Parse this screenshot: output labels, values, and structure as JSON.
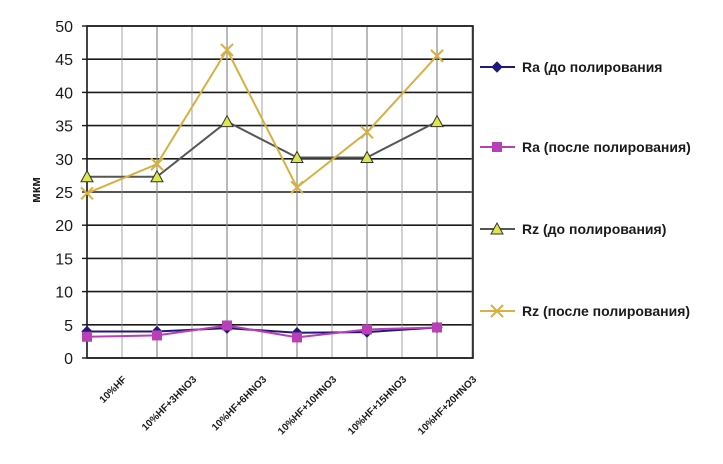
{
  "chart_data": {
    "type": "line",
    "title": "",
    "xlabel": "",
    "ylabel": "мкм",
    "ylim": [
      0,
      50
    ],
    "yticks": [
      "0",
      "5",
      "10",
      "15",
      "20",
      "25",
      "30",
      "35",
      "40",
      "45",
      "50"
    ],
    "categories": [
      "10%HF",
      "10%HF+3HNO3",
      "10%HF+6HNO3",
      "10%HF+10HNO3",
      "10%HF+15HNO3",
      "10%HF+20HNO3"
    ],
    "grid": true,
    "legend_position": "right",
    "series": [
      {
        "name": "Ra (до полирования",
        "values": [
          4.0,
          4.0,
          4.5,
          3.8,
          3.9,
          4.6
        ],
        "color": "#1f1a7a",
        "marker": "diamond"
      },
      {
        "name": "Ra (после полирования)",
        "values": [
          3.2,
          3.4,
          4.9,
          3.1,
          4.3,
          4.6
        ],
        "color": "#b83fb5",
        "marker": "square"
      },
      {
        "name": "Rz (до полирования)",
        "values": [
          27.3,
          27.3,
          35.6,
          30.2,
          30.2,
          35.6
        ],
        "color": "#555555",
        "marker": "triangle"
      },
      {
        "name": "Rz (после полирования)",
        "values": [
          24.8,
          29.2,
          46.4,
          25.7,
          34.0,
          45.5
        ],
        "color": "#d8b040",
        "marker": "x"
      }
    ]
  }
}
